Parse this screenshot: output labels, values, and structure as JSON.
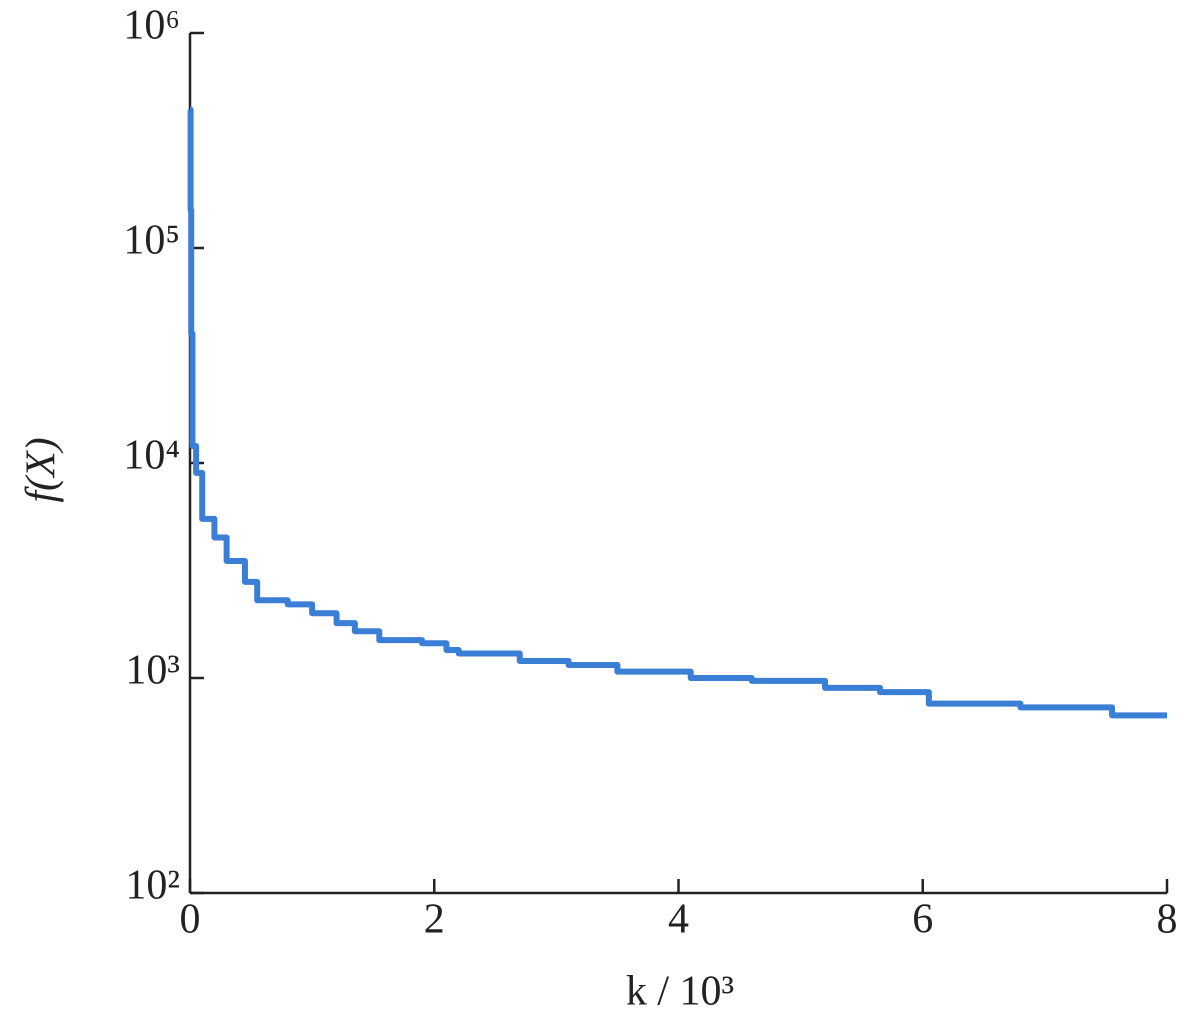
{
  "chart_data": {
    "type": "line",
    "step": "post",
    "xlabel": "k / 10³",
    "ylabel": "f(X)",
    "x": [
      0,
      0.005,
      0.01,
      0.02,
      0.05,
      0.1,
      0.2,
      0.3,
      0.45,
      0.55,
      0.8,
      1.0,
      1.2,
      1.35,
      1.55,
      1.9,
      2.1,
      2.2,
      2.7,
      3.1,
      3.5,
      4.1,
      4.6,
      5.2,
      5.65,
      6.05,
      6.8,
      7.55,
      8
    ],
    "series": [
      {
        "name": "f(X)",
        "color": "#3a7fd5",
        "values": [
          440000,
          150000,
          40000,
          12000,
          9000,
          5500,
          4500,
          3500,
          2800,
          2300,
          2200,
          2000,
          1800,
          1650,
          1500,
          1450,
          1350,
          1300,
          1200,
          1150,
          1070,
          1000,
          970,
          900,
          860,
          760,
          730,
          670,
          670
        ]
      }
    ],
    "xlim": [
      0,
      8
    ],
    "xticks": [
      0,
      2,
      4,
      6,
      8
    ],
    "ylim": [
      100,
      1000000
    ],
    "log_y": true,
    "yticks": [
      {
        "value": 100,
        "label": "10²"
      },
      {
        "value": 1000,
        "label": "10³"
      },
      {
        "value": 10000,
        "label": "10⁴"
      },
      {
        "value": 100000,
        "label": "10⁵"
      },
      {
        "value": 1000000,
        "label": "10⁶"
      }
    ],
    "grid": false
  }
}
